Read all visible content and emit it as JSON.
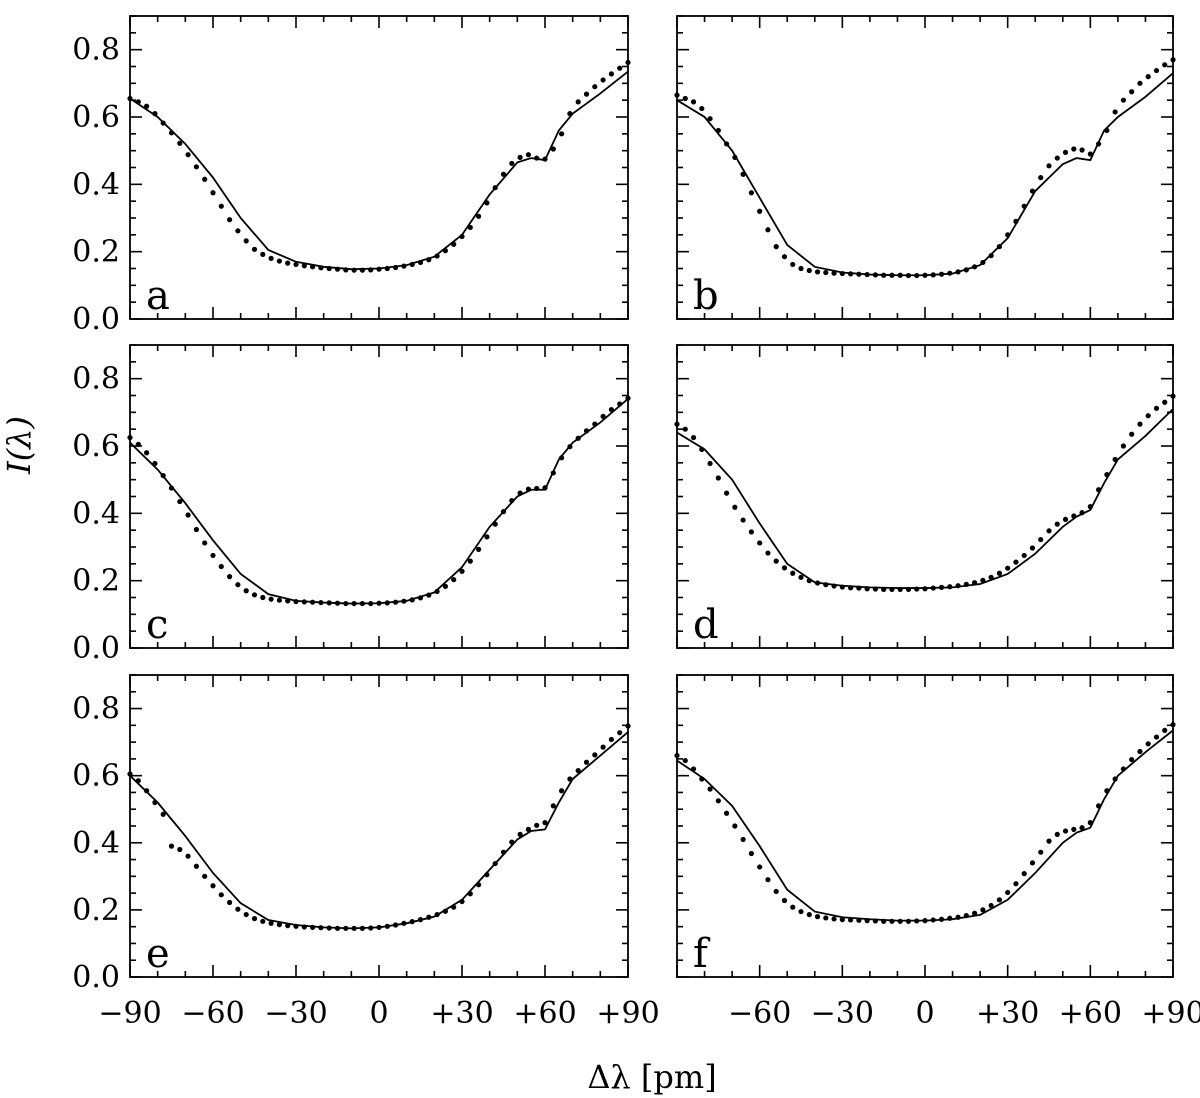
{
  "chart_data": {
    "type": "line",
    "layout": "3x2 small multiples",
    "xlabel": "Δλ  [pm]",
    "ylabel": "I(λ)",
    "xlim": [
      -90,
      90
    ],
    "ylim": [
      0.0,
      0.9
    ],
    "x_major_ticks": [
      -90,
      -60,
      -30,
      0,
      30,
      60,
      90
    ],
    "x_minor_step": 10,
    "x_tick_labels": [
      "−90",
      "−60",
      "−30",
      "0",
      "+30",
      "+60",
      "+90"
    ],
    "x_tick_labels_right_panel": [
      "",
      "−60",
      "−30",
      "0",
      "+30",
      "+60",
      "+90"
    ],
    "y_major_ticks": [
      0.0,
      0.2,
      0.4,
      0.6,
      0.8
    ],
    "y_minor_step": 0.05,
    "y_tick_labels": [
      "0.0",
      "0.2",
      "0.4",
      "0.6",
      "0.8"
    ],
    "grid": false,
    "legend": "none",
    "series_styles": {
      "model": "solid line",
      "observed": "dots"
    },
    "panels": [
      {
        "label": "a",
        "model": {
          "x": [
            -90,
            -80,
            -70,
            -60,
            -50,
            -40,
            -30,
            -20,
            -10,
            0,
            10,
            20,
            30,
            40,
            50,
            55,
            60,
            65,
            70,
            80,
            90
          ],
          "y": [
            0.655,
            0.6,
            0.52,
            0.42,
            0.3,
            0.205,
            0.17,
            0.155,
            0.148,
            0.15,
            0.16,
            0.185,
            0.25,
            0.37,
            0.465,
            0.478,
            0.472,
            0.56,
            0.61,
            0.67,
            0.735
          ]
        },
        "observed": {
          "x": [
            -90,
            -87,
            -84,
            -81,
            -78,
            -75,
            -72,
            -69,
            -66,
            -63,
            -60,
            -57,
            -54,
            -51,
            -48,
            -45,
            -42,
            -39,
            -36,
            -33,
            -30,
            -27,
            -24,
            -21,
            -18,
            -15,
            -12,
            -9,
            -6,
            -3,
            0,
            3,
            6,
            9,
            12,
            15,
            18,
            21,
            24,
            27,
            30,
            33,
            36,
            39,
            42,
            45,
            48,
            51,
            54,
            57,
            60,
            63,
            66,
            69,
            72,
            75,
            78,
            81,
            84,
            87,
            90
          ],
          "y": [
            0.655,
            0.645,
            0.632,
            0.61,
            0.582,
            0.553,
            0.522,
            0.488,
            0.452,
            0.415,
            0.375,
            0.335,
            0.295,
            0.262,
            0.232,
            0.207,
            0.192,
            0.18,
            0.172,
            0.166,
            0.162,
            0.158,
            0.155,
            0.152,
            0.15,
            0.148,
            0.146,
            0.145,
            0.145,
            0.146,
            0.148,
            0.15,
            0.153,
            0.157,
            0.162,
            0.168,
            0.176,
            0.187,
            0.203,
            0.222,
            0.245,
            0.272,
            0.305,
            0.345,
            0.39,
            0.43,
            0.462,
            0.48,
            0.488,
            0.478,
            0.475,
            0.505,
            0.55,
            0.61,
            0.645,
            0.668,
            0.69,
            0.71,
            0.728,
            0.745,
            0.762
          ]
        }
      },
      {
        "label": "b",
        "model": {
          "x": [
            -90,
            -80,
            -70,
            -60,
            -50,
            -40,
            -30,
            -20,
            -10,
            0,
            10,
            20,
            30,
            40,
            50,
            55,
            60,
            65,
            70,
            80,
            90
          ],
          "y": [
            0.65,
            0.6,
            0.5,
            0.36,
            0.22,
            0.155,
            0.138,
            0.132,
            0.13,
            0.13,
            0.135,
            0.16,
            0.24,
            0.38,
            0.46,
            0.478,
            0.472,
            0.56,
            0.6,
            0.66,
            0.73
          ]
        },
        "observed": {
          "x": [
            -90,
            -87,
            -84,
            -81,
            -78,
            -75,
            -72,
            -69,
            -66,
            -63,
            -60,
            -57,
            -54,
            -51,
            -48,
            -45,
            -42,
            -39,
            -36,
            -33,
            -30,
            -27,
            -24,
            -21,
            -18,
            -15,
            -12,
            -9,
            -6,
            -3,
            0,
            3,
            6,
            9,
            12,
            15,
            18,
            21,
            24,
            27,
            30,
            33,
            36,
            39,
            42,
            45,
            48,
            51,
            54,
            57,
            60,
            63,
            66,
            69,
            72,
            75,
            78,
            81,
            84,
            87,
            90
          ],
          "y": [
            0.665,
            0.655,
            0.645,
            0.625,
            0.595,
            0.56,
            0.52,
            0.48,
            0.43,
            0.375,
            0.32,
            0.265,
            0.215,
            0.185,
            0.162,
            0.15,
            0.144,
            0.14,
            0.138,
            0.136,
            0.135,
            0.134,
            0.133,
            0.132,
            0.131,
            0.13,
            0.13,
            0.13,
            0.129,
            0.129,
            0.13,
            0.131,
            0.133,
            0.136,
            0.14,
            0.146,
            0.155,
            0.168,
            0.188,
            0.215,
            0.25,
            0.29,
            0.335,
            0.38,
            0.42,
            0.455,
            0.478,
            0.495,
            0.505,
            0.502,
            0.49,
            0.52,
            0.56,
            0.615,
            0.65,
            0.675,
            0.7,
            0.72,
            0.738,
            0.755,
            0.77
          ]
        }
      },
      {
        "label": "c",
        "model": {
          "x": [
            -90,
            -80,
            -70,
            -60,
            -50,
            -40,
            -30,
            -20,
            -10,
            0,
            10,
            20,
            30,
            40,
            50,
            55,
            60,
            65,
            70,
            80,
            90
          ],
          "y": [
            0.61,
            0.53,
            0.43,
            0.32,
            0.22,
            0.16,
            0.14,
            0.135,
            0.132,
            0.133,
            0.14,
            0.165,
            0.24,
            0.36,
            0.45,
            0.47,
            0.47,
            0.56,
            0.61,
            0.67,
            0.74
          ]
        },
        "observed": {
          "x": [
            -90,
            -87,
            -84,
            -81,
            -78,
            -75,
            -72,
            -69,
            -66,
            -63,
            -60,
            -57,
            -54,
            -51,
            -48,
            -45,
            -42,
            -39,
            -36,
            -33,
            -30,
            -27,
            -24,
            -21,
            -18,
            -15,
            -12,
            -9,
            -6,
            -3,
            0,
            3,
            6,
            9,
            12,
            15,
            18,
            21,
            24,
            27,
            30,
            33,
            36,
            39,
            42,
            45,
            48,
            51,
            54,
            57,
            60,
            63,
            66,
            69,
            72,
            75,
            78,
            81,
            84,
            87,
            90
          ],
          "y": [
            0.625,
            0.605,
            0.58,
            0.548,
            0.512,
            0.475,
            0.435,
            0.395,
            0.352,
            0.312,
            0.275,
            0.242,
            0.212,
            0.188,
            0.17,
            0.158,
            0.15,
            0.145,
            0.142,
            0.14,
            0.138,
            0.137,
            0.136,
            0.135,
            0.134,
            0.133,
            0.132,
            0.132,
            0.132,
            0.132,
            0.133,
            0.134,
            0.136,
            0.139,
            0.143,
            0.149,
            0.157,
            0.168,
            0.183,
            0.203,
            0.228,
            0.258,
            0.293,
            0.33,
            0.368,
            0.405,
            0.438,
            0.46,
            0.472,
            0.474,
            0.476,
            0.52,
            0.565,
            0.598,
            0.623,
            0.645,
            0.665,
            0.688,
            0.708,
            0.725,
            0.742
          ]
        }
      },
      {
        "label": "d",
        "model": {
          "x": [
            -90,
            -80,
            -70,
            -60,
            -50,
            -40,
            -30,
            -20,
            -10,
            0,
            10,
            20,
            30,
            40,
            50,
            55,
            60,
            65,
            70,
            80,
            90
          ],
          "y": [
            0.64,
            0.59,
            0.5,
            0.37,
            0.25,
            0.195,
            0.185,
            0.18,
            0.178,
            0.178,
            0.18,
            0.19,
            0.22,
            0.28,
            0.36,
            0.39,
            0.41,
            0.49,
            0.56,
            0.63,
            0.71
          ]
        },
        "observed": {
          "x": [
            -90,
            -87,
            -84,
            -81,
            -78,
            -75,
            -72,
            -69,
            -66,
            -63,
            -60,
            -57,
            -54,
            -51,
            -48,
            -45,
            -42,
            -39,
            -36,
            -33,
            -30,
            -27,
            -24,
            -21,
            -18,
            -15,
            -12,
            -9,
            -6,
            -3,
            0,
            3,
            6,
            9,
            12,
            15,
            18,
            21,
            24,
            27,
            30,
            33,
            36,
            39,
            42,
            45,
            48,
            51,
            54,
            57,
            60,
            63,
            66,
            69,
            72,
            75,
            78,
            81,
            84,
            87,
            90
          ],
          "y": [
            0.665,
            0.65,
            0.625,
            0.59,
            0.548,
            0.505,
            0.46,
            0.418,
            0.38,
            0.345,
            0.312,
            0.282,
            0.258,
            0.238,
            0.222,
            0.21,
            0.2,
            0.193,
            0.188,
            0.184,
            0.181,
            0.179,
            0.178,
            0.176,
            0.175,
            0.174,
            0.174,
            0.174,
            0.174,
            0.175,
            0.176,
            0.178,
            0.18,
            0.182,
            0.185,
            0.189,
            0.194,
            0.201,
            0.21,
            0.222,
            0.237,
            0.255,
            0.275,
            0.297,
            0.322,
            0.348,
            0.368,
            0.382,
            0.392,
            0.402,
            0.42,
            0.47,
            0.515,
            0.56,
            0.6,
            0.635,
            0.665,
            0.69,
            0.712,
            0.73,
            0.748
          ]
        }
      },
      {
        "label": "e",
        "model": {
          "x": [
            -90,
            -80,
            -70,
            -60,
            -50,
            -40,
            -30,
            -20,
            -10,
            0,
            10,
            20,
            30,
            40,
            50,
            55,
            60,
            65,
            70,
            80,
            90
          ],
          "y": [
            0.6,
            0.52,
            0.42,
            0.31,
            0.22,
            0.17,
            0.155,
            0.148,
            0.145,
            0.148,
            0.16,
            0.18,
            0.23,
            0.32,
            0.41,
            0.435,
            0.44,
            0.52,
            0.59,
            0.66,
            0.73
          ]
        },
        "observed": {
          "x": [
            -90,
            -87,
            -84,
            -81,
            -78,
            -75,
            -72,
            -69,
            -66,
            -63,
            -60,
            -57,
            -54,
            -51,
            -48,
            -45,
            -42,
            -39,
            -36,
            -33,
            -30,
            -27,
            -24,
            -21,
            -18,
            -15,
            -12,
            -9,
            -6,
            -3,
            0,
            3,
            6,
            9,
            12,
            15,
            18,
            21,
            24,
            27,
            30,
            33,
            36,
            39,
            42,
            45,
            48,
            51,
            54,
            57,
            60,
            63,
            66,
            69,
            72,
            75,
            78,
            81,
            84,
            87,
            90
          ],
          "y": [
            0.605,
            0.585,
            0.555,
            0.52,
            0.485,
            0.39,
            0.38,
            0.36,
            0.33,
            0.3,
            0.272,
            0.245,
            0.222,
            0.202,
            0.186,
            0.174,
            0.166,
            0.16,
            0.156,
            0.153,
            0.151,
            0.149,
            0.148,
            0.147,
            0.146,
            0.145,
            0.145,
            0.145,
            0.145,
            0.146,
            0.148,
            0.151,
            0.155,
            0.16,
            0.165,
            0.171,
            0.178,
            0.186,
            0.196,
            0.208,
            0.225,
            0.248,
            0.275,
            0.305,
            0.338,
            0.372,
            0.402,
            0.425,
            0.44,
            0.452,
            0.46,
            0.51,
            0.555,
            0.59,
            0.615,
            0.64,
            0.662,
            0.685,
            0.708,
            0.728,
            0.748
          ]
        }
      },
      {
        "label": "f",
        "model": {
          "x": [
            -90,
            -80,
            -70,
            -60,
            -50,
            -40,
            -30,
            -20,
            -10,
            0,
            10,
            20,
            30,
            40,
            50,
            55,
            60,
            65,
            70,
            80,
            90
          ],
          "y": [
            0.645,
            0.59,
            0.51,
            0.39,
            0.26,
            0.195,
            0.178,
            0.172,
            0.168,
            0.168,
            0.172,
            0.185,
            0.23,
            0.31,
            0.4,
            0.43,
            0.445,
            0.53,
            0.6,
            0.67,
            0.735
          ]
        },
        "observed": {
          "x": [
            -90,
            -87,
            -84,
            -81,
            -78,
            -75,
            -72,
            -69,
            -66,
            -63,
            -60,
            -57,
            -54,
            -51,
            -48,
            -45,
            -42,
            -39,
            -36,
            -33,
            -30,
            -27,
            -24,
            -21,
            -18,
            -15,
            -12,
            -9,
            -6,
            -3,
            0,
            3,
            6,
            9,
            12,
            15,
            18,
            21,
            24,
            27,
            30,
            33,
            36,
            39,
            42,
            45,
            48,
            51,
            54,
            57,
            60,
            63,
            66,
            69,
            72,
            75,
            78,
            81,
            84,
            87,
            90
          ],
          "y": [
            0.66,
            0.645,
            0.62,
            0.59,
            0.56,
            0.525,
            0.488,
            0.45,
            0.41,
            0.368,
            0.328,
            0.29,
            0.255,
            0.228,
            0.208,
            0.195,
            0.186,
            0.18,
            0.176,
            0.173,
            0.171,
            0.17,
            0.169,
            0.168,
            0.167,
            0.166,
            0.166,
            0.166,
            0.166,
            0.167,
            0.168,
            0.17,
            0.172,
            0.175,
            0.178,
            0.183,
            0.19,
            0.2,
            0.213,
            0.23,
            0.252,
            0.278,
            0.308,
            0.34,
            0.372,
            0.405,
            0.425,
            0.435,
            0.44,
            0.445,
            0.46,
            0.51,
            0.555,
            0.59,
            0.62,
            0.648,
            0.672,
            0.695,
            0.715,
            0.735,
            0.752
          ]
        }
      }
    ]
  }
}
